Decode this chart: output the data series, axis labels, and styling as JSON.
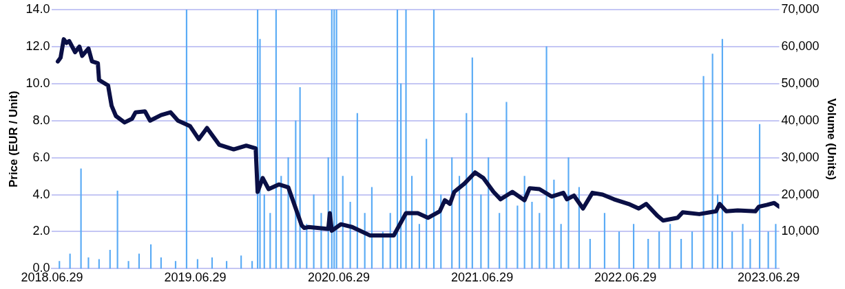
{
  "chart_data": {
    "type": "line",
    "ylabel": "Price (EUR / Unit)",
    "y2label": "Volume (Units)",
    "xlim": [
      "2018-06-29",
      "2023-07-26"
    ],
    "xticks": [
      {
        "value": "2018-06-29",
        "label": "2018.06.29"
      },
      {
        "value": "2019-06-29",
        "label": "2019.06.29"
      },
      {
        "value": "2020-06-29",
        "label": "2020.06.29"
      },
      {
        "value": "2021-06-29",
        "label": "2021.06.29"
      },
      {
        "value": "2022-06-29",
        "label": "2022.06.29"
      },
      {
        "value": "2023-06-29",
        "label": "2023.06.29"
      }
    ],
    "ylim": [
      0,
      14
    ],
    "yticks": [
      {
        "value": 0,
        "label": "0.0"
      },
      {
        "value": 2,
        "label": "2.0"
      },
      {
        "value": 4,
        "label": "4.0"
      },
      {
        "value": 6,
        "label": "6.0"
      },
      {
        "value": 8,
        "label": "8.0"
      },
      {
        "value": 10,
        "label": "10.0"
      },
      {
        "value": 12,
        "label": "12.0"
      },
      {
        "value": 14,
        "label": "14.0"
      }
    ],
    "y2lim": [
      0,
      70000
    ],
    "y2ticks": [
      {
        "value": 10000,
        "label": "10,000"
      },
      {
        "value": 20000,
        "label": "20,000"
      },
      {
        "value": 30000,
        "label": "30,000"
      },
      {
        "value": 40000,
        "label": "40,000"
      },
      {
        "value": 50000,
        "label": "50,000"
      },
      {
        "value": 60000,
        "label": "60,000"
      },
      {
        "value": 70000,
        "label": "70,000"
      }
    ],
    "grid": "y",
    "legend": false,
    "marker": "none",
    "line_style": "solid",
    "series": [
      {
        "type": "bar",
        "axis": "y2",
        "color": "#5aabf5",
        "x": [
          "2018-07-18",
          "2018-08-14",
          "2018-09-11",
          "2018-09-30",
          "2018-10-27",
          "2018-11-24",
          "2018-12-13",
          "2019-01-10",
          "2019-02-06",
          "2019-03-08",
          "2019-04-03",
          "2019-05-10",
          "2019-06-07",
          "2019-07-05",
          "2019-08-11",
          "2019-09-17",
          "2019-10-24",
          "2019-11-21",
          "2019-12-05",
          "2019-12-11",
          "2019-12-22",
          "2020-01-06",
          "2020-01-21",
          "2020-02-03",
          "2020-02-21",
          "2020-03-11",
          "2020-03-22",
          "2020-04-08",
          "2020-04-26",
          "2020-05-15",
          "2020-06-02",
          "2020-06-11",
          "2020-06-17",
          "2020-06-23",
          "2020-07-09",
          "2020-07-28",
          "2020-08-15",
          "2020-09-03",
          "2020-09-21",
          "2020-10-19",
          "2020-11-07",
          "2020-11-25",
          "2020-12-04",
          "2020-12-17",
          "2021-01-01",
          "2021-01-20",
          "2021-02-07",
          "2021-02-26",
          "2021-03-16",
          "2021-04-13",
          "2021-05-02",
          "2021-05-20",
          "2021-06-04",
          "2021-06-26",
          "2021-07-15",
          "2021-08-12",
          "2021-08-30",
          "2021-09-27",
          "2021-10-15",
          "2021-11-03",
          "2021-11-22",
          "2021-12-10",
          "2021-12-29",
          "2022-01-16",
          "2022-02-04",
          "2022-03-03",
          "2022-03-31",
          "2022-05-07",
          "2022-06-13",
          "2022-07-20",
          "2022-08-26",
          "2022-09-23",
          "2022-10-21",
          "2022-11-18",
          "2022-12-16",
          "2023-01-14",
          "2023-02-06",
          "2023-02-19",
          "2023-03-03",
          "2023-03-28",
          "2023-04-24",
          "2023-05-13",
          "2023-06-06",
          "2023-06-28",
          "2023-07-17"
        ],
        "values": [
          2000,
          4000,
          27000,
          3000,
          2500,
          5000,
          21000,
          2000,
          4000,
          6500,
          3000,
          2000,
          70000,
          2500,
          3000,
          2000,
          3500,
          2000,
          70000,
          62000,
          20000,
          15000,
          70000,
          25000,
          30000,
          40000,
          49000,
          12000,
          20000,
          15000,
          30000,
          70000,
          70000,
          70000,
          25000,
          18000,
          42000,
          15000,
          22000,
          10000,
          15000,
          70000,
          50000,
          70000,
          25000,
          12000,
          35000,
          70000,
          20000,
          30000,
          25000,
          42000,
          57000,
          20000,
          30000,
          15000,
          45000,
          17000,
          25000,
          18000,
          15000,
          60000,
          24000,
          12000,
          30000,
          22000,
          8000,
          15000,
          10000,
          12000,
          8000,
          10000,
          12000,
          8000,
          10000,
          52000,
          58000,
          20000,
          62000,
          10000,
          12000,
          8000,
          39000,
          10000,
          12000
        ]
      },
      {
        "type": "line",
        "color": "#0a0f45",
        "x": [
          "2018-07-14",
          "2018-07-21",
          "2018-07-29",
          "2018-08-05",
          "2018-08-12",
          "2018-08-27",
          "2018-09-07",
          "2018-09-14",
          "2018-09-30",
          "2018-10-09",
          "2018-10-24",
          "2018-10-27",
          "2018-11-19",
          "2018-11-28",
          "2018-12-09",
          "2018-12-31",
          "2019-01-19",
          "2019-01-28",
          "2019-02-21",
          "2019-03-06",
          "2019-04-03",
          "2019-04-27",
          "2019-05-16",
          "2019-06-16",
          "2019-07-08",
          "2019-07-29",
          "2019-08-29",
          "2019-10-05",
          "2019-11-06",
          "2019-11-30",
          "2019-12-05",
          "2019-12-18",
          "2020-01-02",
          "2020-01-28",
          "2020-02-21",
          "2020-03-07",
          "2020-03-26",
          "2020-04-02",
          "2020-04-13",
          "2020-06-02",
          "2020-06-06",
          "2020-06-11",
          "2020-07-04",
          "2020-08-02",
          "2020-09-16",
          "2020-10-10",
          "2020-11-16",
          "2020-12-17",
          "2021-01-16",
          "2021-02-11",
          "2021-03-13",
          "2021-03-26",
          "2021-04-08",
          "2021-04-19",
          "2021-05-15",
          "2021-06-11",
          "2021-07-02",
          "2021-07-28",
          "2021-08-15",
          "2021-09-14",
          "2021-10-15",
          "2021-10-28",
          "2021-11-22",
          "2021-12-23",
          "2022-01-22",
          "2022-01-31",
          "2022-02-18",
          "2022-03-13",
          "2022-04-06",
          "2022-05-02",
          "2022-05-31",
          "2022-07-07",
          "2022-08-02",
          "2022-08-21",
          "2022-09-19",
          "2022-10-03",
          "2022-11-09",
          "2022-11-22",
          "2023-01-03",
          "2023-02-15",
          "2023-02-24",
          "2023-03-13",
          "2023-04-11",
          "2023-05-26",
          "2023-06-04",
          "2023-06-25",
          "2023-07-13",
          "2023-07-26"
        ],
        "values": [
          11.2,
          11.4,
          12.4,
          12.2,
          12.3,
          11.7,
          12.0,
          11.5,
          11.9,
          11.2,
          11.1,
          10.2,
          9.9,
          8.8,
          8.25,
          7.9,
          8.1,
          8.45,
          8.5,
          8.0,
          8.3,
          8.45,
          8.0,
          7.7,
          7.0,
          7.6,
          6.7,
          6.45,
          6.65,
          6.5,
          4.15,
          4.9,
          4.3,
          4.55,
          4.4,
          3.5,
          2.35,
          2.2,
          2.25,
          2.15,
          3.0,
          2.05,
          2.4,
          2.25,
          1.8,
          1.8,
          1.8,
          3.0,
          3.0,
          2.75,
          3.1,
          3.7,
          3.5,
          4.15,
          4.6,
          5.2,
          4.9,
          4.15,
          3.75,
          4.15,
          3.7,
          4.35,
          4.3,
          3.9,
          4.1,
          3.75,
          3.95,
          3.25,
          4.1,
          4.0,
          3.75,
          3.5,
          3.25,
          3.5,
          2.85,
          2.6,
          2.75,
          3.05,
          2.95,
          3.1,
          3.5,
          3.1,
          3.15,
          3.1,
          3.35,
          3.45,
          3.55,
          3.35
        ]
      }
    ]
  }
}
